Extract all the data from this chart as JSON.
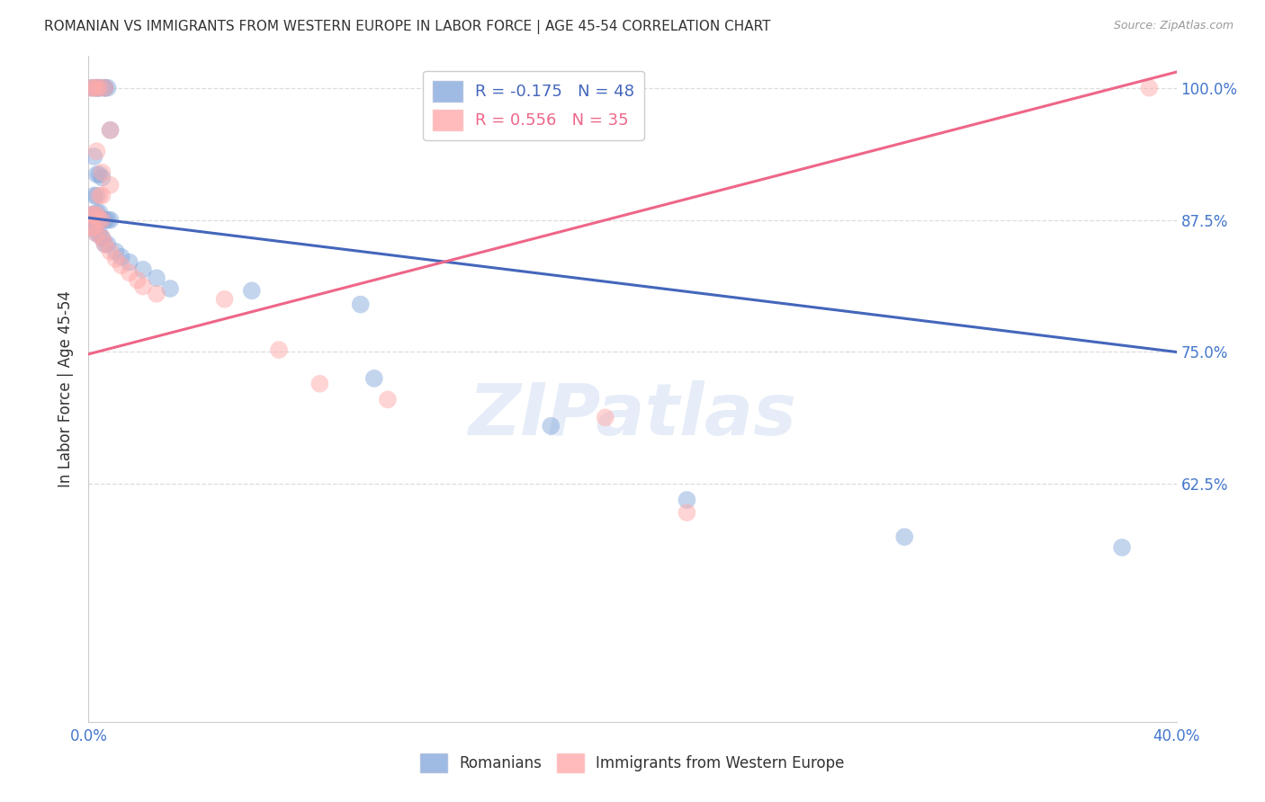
{
  "title": "ROMANIAN VS IMMIGRANTS FROM WESTERN EUROPE IN LABOR FORCE | AGE 45-54 CORRELATION CHART",
  "source": "Source: ZipAtlas.com",
  "ylabel": "In Labor Force | Age 45-54",
  "xlim": [
    0.0,
    0.4
  ],
  "ylim": [
    0.4,
    1.03
  ],
  "xtick_positions": [
    0.0,
    0.05,
    0.1,
    0.15,
    0.2,
    0.25,
    0.3,
    0.35,
    0.4
  ],
  "xticklabels": [
    "0.0%",
    "",
    "",
    "",
    "",
    "",
    "",
    "",
    "40.0%"
  ],
  "ytick_positions": [
    0.625,
    0.75,
    0.875,
    1.0
  ],
  "yticklabels_right": [
    "62.5%",
    "75.0%",
    "87.5%",
    "100.0%"
  ],
  "blue_R": -0.175,
  "blue_N": 48,
  "pink_R": 0.556,
  "pink_N": 35,
  "blue_color": "#88AADD",
  "pink_color": "#FFAAAA",
  "blue_line_color": "#4466BB",
  "pink_line_color": "#EE6688",
  "blue_line": [
    0.0,
    0.877,
    0.4,
    0.75
  ],
  "pink_line": [
    0.0,
    0.748,
    0.4,
    1.015
  ],
  "blue_points": [
    [
      0.001,
      1.0
    ],
    [
      0.002,
      1.0
    ],
    [
      0.003,
      1.0
    ],
    [
      0.003,
      1.0
    ],
    [
      0.004,
      1.0
    ],
    [
      0.004,
      1.0
    ],
    [
      0.006,
      1.0
    ],
    [
      0.006,
      1.0
    ],
    [
      0.007,
      1.0
    ],
    [
      0.008,
      0.96
    ],
    [
      0.002,
      0.935
    ],
    [
      0.003,
      0.918
    ],
    [
      0.004,
      0.918
    ],
    [
      0.005,
      0.915
    ],
    [
      0.002,
      0.898
    ],
    [
      0.003,
      0.898
    ],
    [
      0.001,
      0.88
    ],
    [
      0.002,
      0.88
    ],
    [
      0.003,
      0.882
    ],
    [
      0.004,
      0.882
    ],
    [
      0.001,
      0.875
    ],
    [
      0.002,
      0.875
    ],
    [
      0.003,
      0.875
    ],
    [
      0.004,
      0.875
    ],
    [
      0.005,
      0.875
    ],
    [
      0.006,
      0.875
    ],
    [
      0.007,
      0.875
    ],
    [
      0.008,
      0.875
    ],
    [
      0.001,
      0.868
    ],
    [
      0.002,
      0.868
    ],
    [
      0.003,
      0.862
    ],
    [
      0.004,
      0.862
    ],
    [
      0.005,
      0.858
    ],
    [
      0.006,
      0.852
    ],
    [
      0.007,
      0.852
    ],
    [
      0.01,
      0.845
    ],
    [
      0.012,
      0.84
    ],
    [
      0.015,
      0.835
    ],
    [
      0.02,
      0.828
    ],
    [
      0.025,
      0.82
    ],
    [
      0.03,
      0.81
    ],
    [
      0.06,
      0.808
    ],
    [
      0.1,
      0.795
    ],
    [
      0.105,
      0.725
    ],
    [
      0.17,
      0.68
    ],
    [
      0.22,
      0.61
    ],
    [
      0.3,
      0.575
    ],
    [
      0.38,
      0.565
    ]
  ],
  "pink_points": [
    [
      0.001,
      1.0
    ],
    [
      0.002,
      1.0
    ],
    [
      0.003,
      1.0
    ],
    [
      0.004,
      1.0
    ],
    [
      0.006,
      1.0
    ],
    [
      0.008,
      0.96
    ],
    [
      0.003,
      0.94
    ],
    [
      0.005,
      0.92
    ],
    [
      0.008,
      0.908
    ],
    [
      0.004,
      0.898
    ],
    [
      0.005,
      0.898
    ],
    [
      0.001,
      0.88
    ],
    [
      0.002,
      0.88
    ],
    [
      0.003,
      0.88
    ],
    [
      0.004,
      0.875
    ],
    [
      0.005,
      0.875
    ],
    [
      0.001,
      0.868
    ],
    [
      0.002,
      0.868
    ],
    [
      0.003,
      0.862
    ],
    [
      0.005,
      0.858
    ],
    [
      0.006,
      0.852
    ],
    [
      0.008,
      0.845
    ],
    [
      0.01,
      0.838
    ],
    [
      0.012,
      0.832
    ],
    [
      0.015,
      0.825
    ],
    [
      0.018,
      0.818
    ],
    [
      0.02,
      0.812
    ],
    [
      0.025,
      0.805
    ],
    [
      0.05,
      0.8
    ],
    [
      0.07,
      0.752
    ],
    [
      0.085,
      0.72
    ],
    [
      0.11,
      0.705
    ],
    [
      0.19,
      0.688
    ],
    [
      0.22,
      0.598
    ],
    [
      0.39,
      1.0
    ]
  ],
  "watermark": "ZIPatlas",
  "watermark_color": "#C8D8F0",
  "background_color": "#FFFFFF",
  "grid_color": "#DDDDDD"
}
